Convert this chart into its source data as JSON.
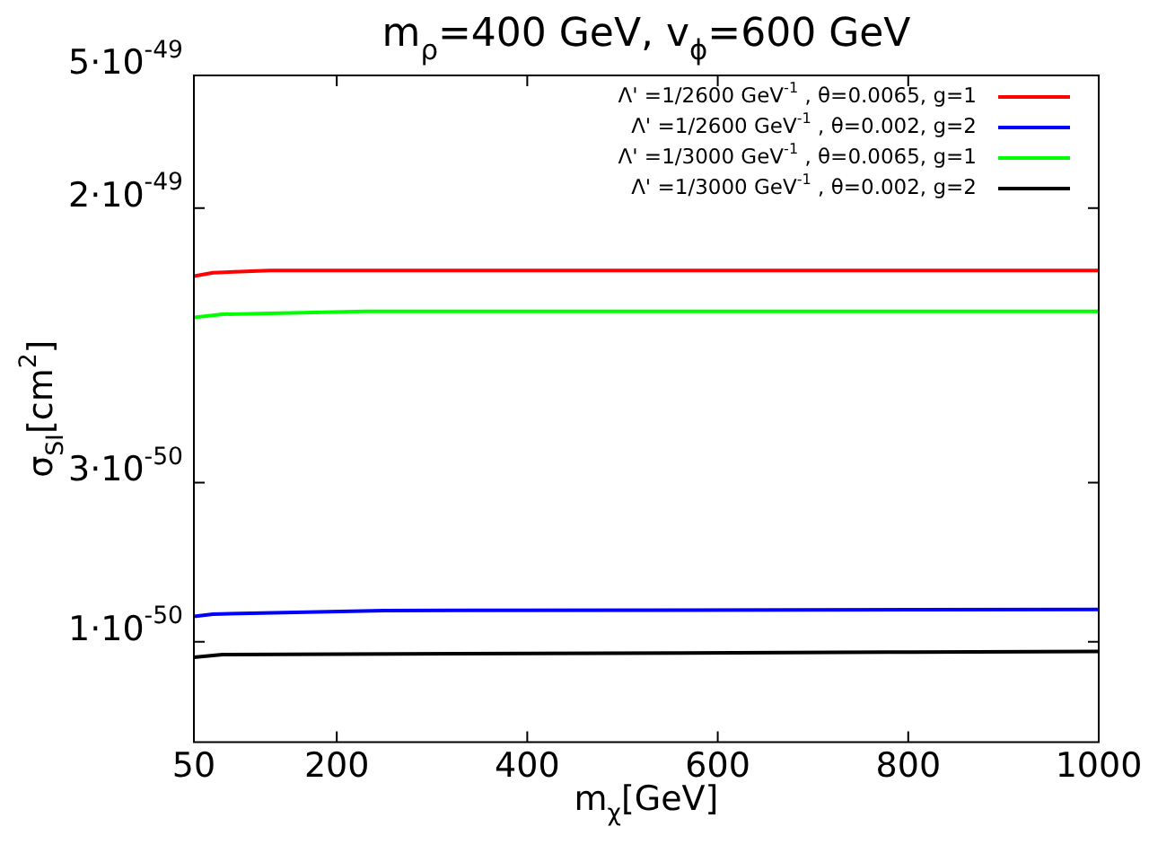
{
  "chart_data": {
    "type": "line",
    "title": "m$_{ρ}$=400 GeV, v$_{ϕ}$=600 GeV",
    "xlabel": "m$_{χ}$[GeV]",
    "ylabel": "σ$_{SI}$[cm$^{2}$]",
    "log": "y",
    "xlim": [
      50,
      1000
    ],
    "xticks": [
      50,
      200,
      400,
      600,
      800,
      1000
    ],
    "ylim": [
      5e-51,
      5e-49
    ],
    "yticks": [
      {
        "value": 5e-49,
        "label": "5·10$^{-49}$"
      },
      {
        "value": 2e-49,
        "label": "2·10$^{-49}$"
      },
      {
        "value": 3e-50,
        "label": "3·10$^{-50}$"
      },
      {
        "value": 1e-50,
        "label": "1·10$^{-50}$"
      }
    ],
    "grid": false,
    "legend": "top right",
    "marker": "none",
    "line_style": "solid",
    "series": [
      {
        "name": "Λ' =1/2600 GeV$^{-1}$ , θ=0.0065, g=1",
        "color": "#ff0000",
        "x": [
          50,
          70,
          130,
          1000
        ],
        "values": [
          1.25e-49,
          1.28e-49,
          1.3e-49,
          1.3e-49
        ]
      },
      {
        "name": "Λ' =1/2600 GeV$^{-1}$ , θ=0.002, g=2",
        "color": "#0000ff",
        "x": [
          50,
          70,
          250,
          1000
        ],
        "values": [
          1.19e-50,
          1.21e-50,
          1.24e-50,
          1.25e-50
        ]
      },
      {
        "name": "Λ' =1/3000 GeV$^{-1}$ , θ=0.0065, g=1",
        "color": "#00ff00",
        "x": [
          50,
          80,
          230,
          1000
        ],
        "values": [
          9.4e-50,
          9.6e-50,
          9.8e-50,
          9.8e-50
        ]
      },
      {
        "name": "Λ' =1/3000 GeV$^{-1}$ , θ=0.002, g=2",
        "color": "#000000",
        "x": [
          50,
          80,
          780,
          1000
        ],
        "values": [
          8.98e-51,
          9.15e-51,
          9.3e-51,
          9.35e-51
        ]
      }
    ]
  }
}
